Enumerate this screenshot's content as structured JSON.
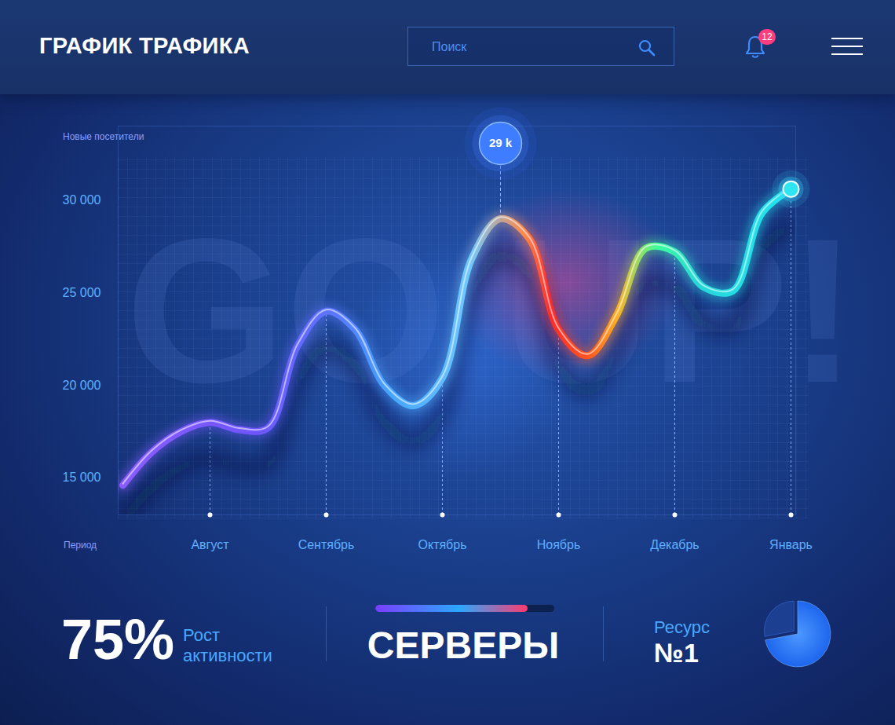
{
  "header": {
    "title": "ГРАФИК ТРАФИКА",
    "search_placeholder": "Поиск",
    "notifications": 12
  },
  "chart_data": {
    "type": "line",
    "background_text": "GO UP!",
    "y_label": "Новые посетители",
    "x_label": "Период",
    "categories": [
      null,
      null,
      null,
      "Август",
      null,
      null,
      null,
      "Сентябрь",
      null,
      null,
      null,
      "Октябрь",
      null,
      null,
      null,
      "Ноябрь",
      null,
      null,
      null,
      "Декабрь",
      null,
      null,
      null,
      "Январь"
    ],
    "values": [
      14600,
      16400,
      17500,
      18000,
      17600,
      17700,
      22100,
      24000,
      23000,
      20000,
      18900,
      20400,
      26800,
      29000,
      27900,
      23000,
      21600,
      23800,
      27400,
      27200,
      25300,
      25100,
      29300,
      30600
    ],
    "ylim": [
      13000,
      34000
    ],
    "yticks": [
      {
        "value": 15000,
        "label": "15 000"
      },
      {
        "value": 20000,
        "label": "20 000"
      },
      {
        "value": 25000,
        "label": "25 000"
      },
      {
        "value": 30000,
        "label": "30 000"
      }
    ],
    "annotations": [
      {
        "value": 29000,
        "label": "29 k"
      }
    ]
  },
  "stats": {
    "activity": {
      "label": "75%",
      "text": [
        "Рост",
        "активности"
      ]
    },
    "servers": {
      "title": "СЕРВЕРЫ",
      "progress": 85
    },
    "resource": {
      "text": "Ресурс",
      "label": "№1",
      "pie": [
        72,
        28
      ]
    }
  }
}
